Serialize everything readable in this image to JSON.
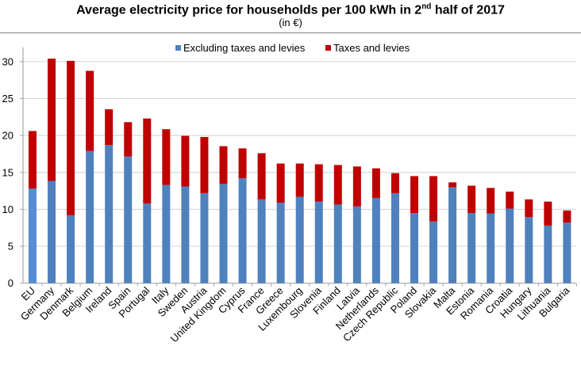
{
  "chart_data": {
    "type": "bar",
    "stacked": true,
    "title_main": "Average electricity price for households per 100 kWh in 2",
    "title_sup": "nd",
    "title_end": " half of 2017",
    "subtitle": "(in €)",
    "xlabel": "",
    "ylabel": "",
    "ylim": [
      0,
      30
    ],
    "yticks": [
      0,
      5,
      10,
      15,
      20,
      25,
      30
    ],
    "grid": true,
    "legend_position": "top-center",
    "categories": [
      "EU",
      "Germany",
      "Denmark",
      "Belgium",
      "Ireland",
      "Spain",
      "Portugal",
      "Italy",
      "Sweden",
      "Austria",
      "United Kingdom",
      "Cyprus",
      "France",
      "Greece",
      "Luxembourg",
      "Slovenia",
      "Finland",
      "Latvia",
      "Netherlands",
      "Czech Republic",
      "Poland",
      "Slovakia",
      "Malta",
      "Estonia",
      "Romania",
      "Croatia",
      "Hungary",
      "Lithuania",
      "Bulgaria"
    ],
    "series": [
      {
        "name": "Excluding taxes and levies",
        "color": "#4F81BD",
        "values": [
          12.8,
          13.85,
          9.2,
          17.9,
          18.7,
          17.15,
          10.8,
          13.3,
          13.1,
          12.2,
          13.45,
          14.2,
          11.35,
          10.9,
          11.7,
          11.05,
          10.65,
          10.4,
          11.55,
          12.2,
          9.5,
          8.35,
          13.0,
          9.5,
          9.45,
          10.1,
          8.95,
          7.8,
          8.2
        ]
      },
      {
        "name": "Taxes and levies",
        "color": "#C00000",
        "values": [
          7.8,
          16.55,
          20.9,
          10.85,
          4.85,
          4.65,
          11.5,
          7.55,
          6.85,
          7.6,
          5.1,
          4.05,
          6.25,
          5.3,
          4.5,
          5.05,
          5.35,
          5.4,
          4.0,
          2.7,
          5.0,
          6.15,
          0.65,
          3.7,
          3.45,
          2.3,
          2.4,
          3.25,
          1.65
        ]
      }
    ],
    "totals": [
      20.6,
      30.4,
      30.1,
      28.75,
      23.55,
      21.8,
      22.3,
      20.85,
      19.95,
      19.8,
      18.55,
      18.25,
      17.6,
      16.2,
      16.2,
      16.1,
      16.0,
      15.8,
      15.55,
      14.9,
      14.5,
      14.5,
      13.65,
      13.2,
      12.9,
      12.4,
      11.35,
      11.05,
      9.85
    ],
    "highlight_category": "EU",
    "highlight_color": "#558ED5"
  }
}
